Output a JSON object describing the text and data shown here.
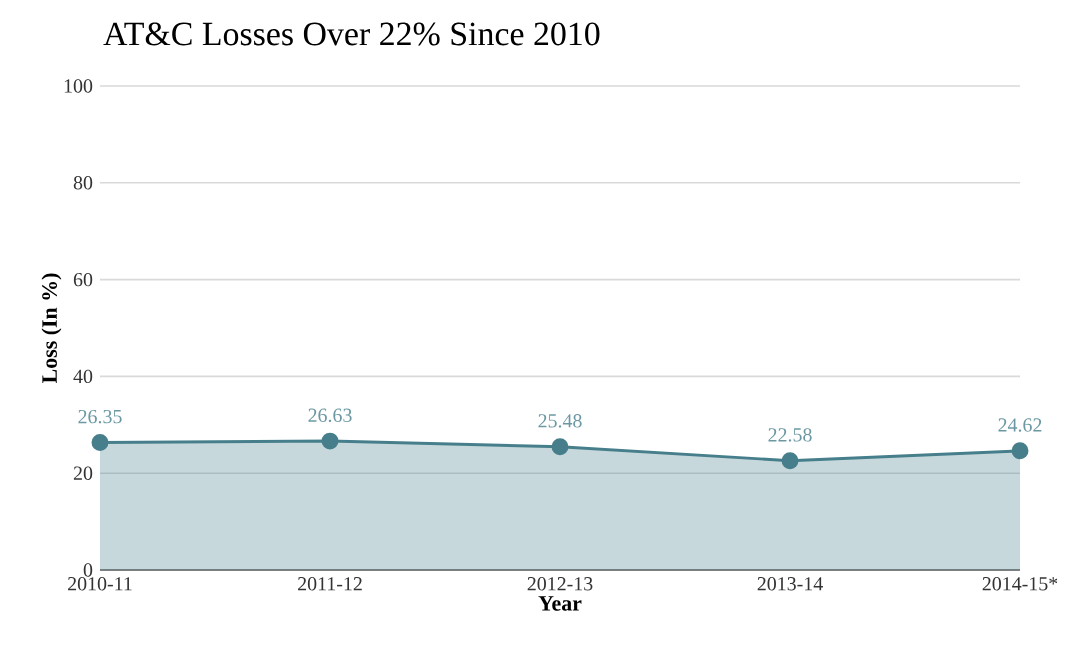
{
  "chart_data": {
    "type": "area",
    "title": "AT&C Losses Over 22% Since 2010",
    "xlabel": "Year",
    "ylabel": "Loss (In %)",
    "categories": [
      "2010-11",
      "2011-12",
      "2012-13",
      "2013-14",
      "2014-15*"
    ],
    "series": [
      {
        "color": "#467f8b",
        "values": [
          26.35,
          26.63,
          25.48,
          22.58,
          24.62
        ]
      }
    ],
    "ylim": [
      0,
      100
    ],
    "yticks": [
      0,
      20,
      40,
      60,
      80,
      100
    ],
    "grid": "y",
    "marker": "circle",
    "data_labels": true
  }
}
